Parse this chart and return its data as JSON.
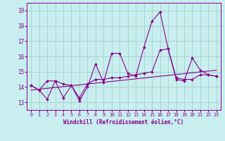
{
  "xlabel": "Windchill (Refroidissement éolien,°C)",
  "bg_color": "#c8eef0",
  "line_color": "#880088",
  "grid_color": "#99ccbb",
  "xlim": [
    -0.5,
    23.5
  ],
  "ylim": [
    12.5,
    19.5
  ],
  "yticks": [
    13,
    14,
    15,
    16,
    17,
    18,
    19
  ],
  "xticks": [
    0,
    1,
    2,
    3,
    4,
    5,
    6,
    7,
    8,
    9,
    10,
    11,
    12,
    13,
    14,
    15,
    16,
    17,
    18,
    19,
    20,
    21,
    22,
    23
  ],
  "line1_x": [
    0,
    1,
    2,
    3,
    4,
    5,
    6,
    7,
    8,
    9,
    10,
    11,
    12,
    13,
    14,
    15,
    16,
    17,
    18,
    19,
    20,
    21,
    22,
    23
  ],
  "line1_y": [
    14.1,
    13.8,
    13.2,
    14.4,
    14.2,
    14.1,
    13.1,
    14.0,
    15.5,
    14.3,
    16.2,
    16.2,
    14.9,
    14.7,
    16.6,
    18.3,
    18.9,
    16.5,
    14.5,
    14.4,
    15.9,
    15.1,
    14.8,
    14.7
  ],
  "line2_x": [
    0,
    1,
    2,
    3,
    4,
    5,
    6,
    7,
    8,
    9,
    10,
    11,
    12,
    13,
    14,
    15,
    16,
    17,
    18,
    19,
    20,
    21,
    22,
    23
  ],
  "line2_y": [
    14.1,
    13.8,
    14.4,
    14.4,
    13.3,
    14.1,
    13.3,
    14.2,
    14.5,
    14.5,
    14.6,
    14.6,
    14.7,
    14.8,
    14.9,
    15.0,
    16.4,
    16.5,
    14.6,
    14.5,
    14.5,
    14.8,
    14.8,
    14.7
  ],
  "line3_x": [
    0,
    23
  ],
  "line3_y": [
    13.8,
    15.1
  ]
}
